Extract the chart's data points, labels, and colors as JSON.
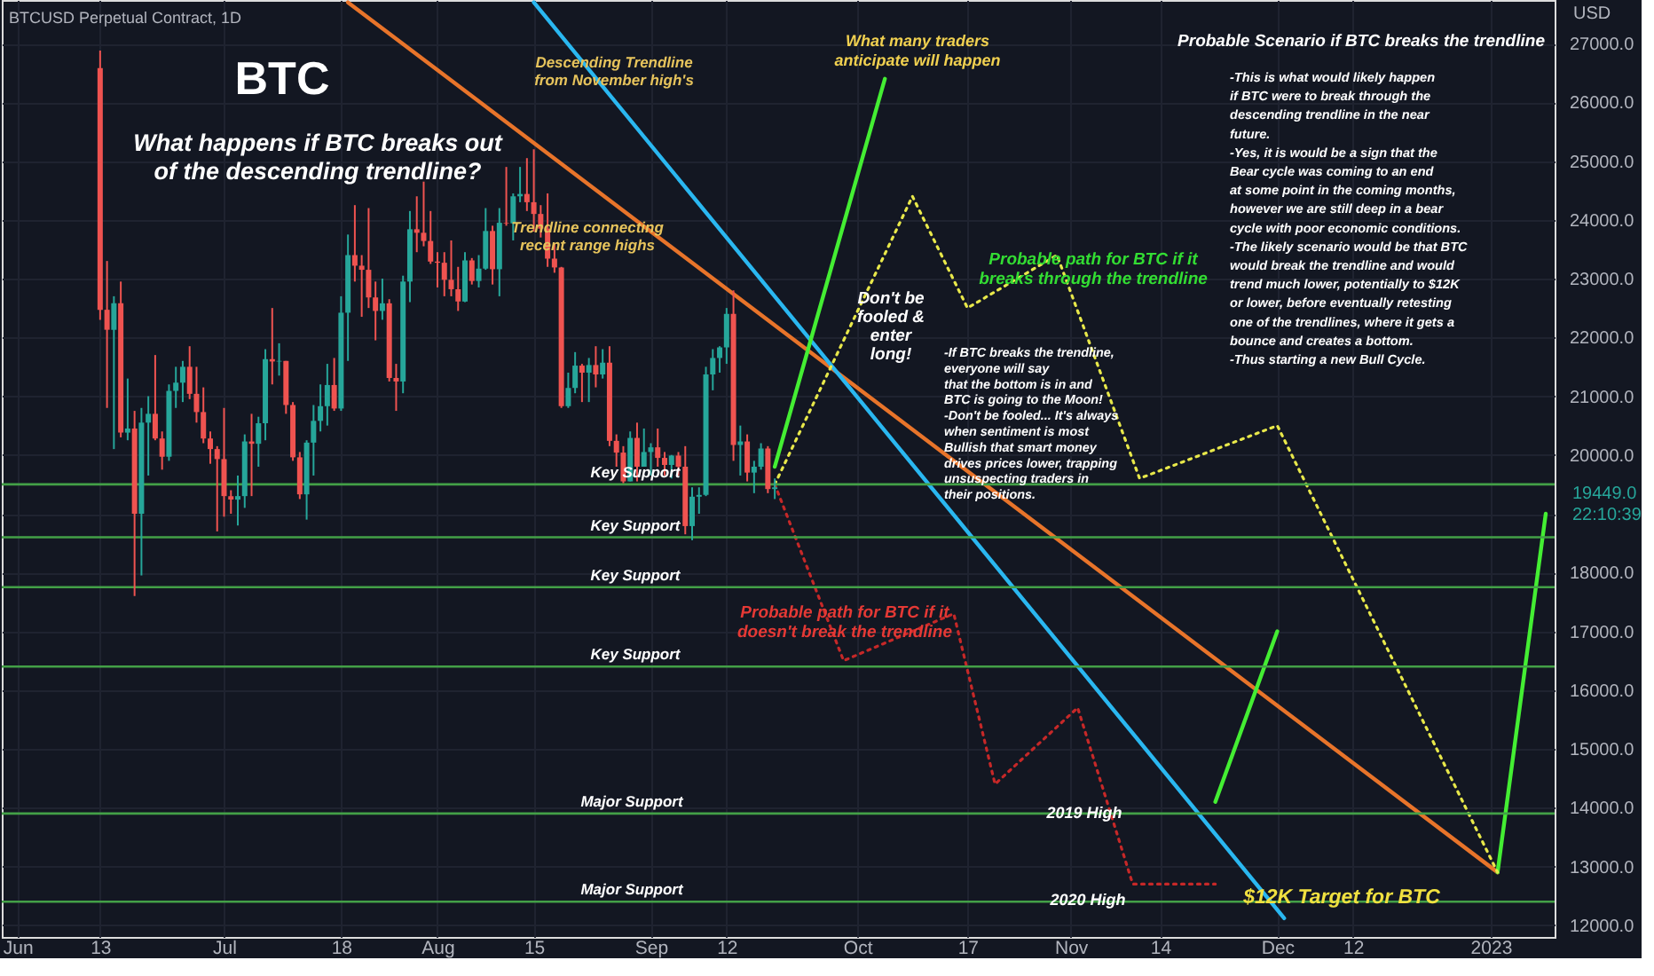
{
  "chart_data": {
    "type": "candlestick",
    "title": "BTCUSD Perpetual Contract, 1D",
    "ylabel": "USD",
    "x": [
      "2022-06-13",
      "2022-06-14",
      "2022-06-15",
      "2022-06-16",
      "2022-06-17",
      "2022-06-18",
      "2022-06-19",
      "2022-06-20",
      "2022-06-21",
      "2022-06-22",
      "2022-06-23",
      "2022-06-24",
      "2022-06-25",
      "2022-06-26",
      "2022-06-27",
      "2022-06-28",
      "2022-06-29",
      "2022-06-30",
      "2022-07-01",
      "2022-07-02",
      "2022-07-03",
      "2022-07-04",
      "2022-07-05",
      "2022-07-06",
      "2022-07-07",
      "2022-07-08",
      "2022-07-09",
      "2022-07-10",
      "2022-07-11",
      "2022-07-12",
      "2022-07-13",
      "2022-07-14",
      "2022-07-15",
      "2022-07-16",
      "2022-07-17",
      "2022-07-18",
      "2022-07-19",
      "2022-07-20",
      "2022-07-21",
      "2022-07-22",
      "2022-07-23",
      "2022-07-24",
      "2022-07-25",
      "2022-07-26",
      "2022-07-27",
      "2022-07-28",
      "2022-07-29",
      "2022-07-30",
      "2022-07-31",
      "2022-08-01",
      "2022-08-02",
      "2022-08-03",
      "2022-08-04",
      "2022-08-05",
      "2022-08-06",
      "2022-08-07",
      "2022-08-08",
      "2022-08-09",
      "2022-08-10",
      "2022-08-11",
      "2022-08-12",
      "2022-08-13",
      "2022-08-14",
      "2022-08-15",
      "2022-08-16",
      "2022-08-17",
      "2022-08-18",
      "2022-08-19",
      "2022-08-20",
      "2022-08-21",
      "2022-08-22",
      "2022-08-23",
      "2022-08-24",
      "2022-08-25",
      "2022-08-26",
      "2022-08-27",
      "2022-08-28",
      "2022-08-29",
      "2022-08-30",
      "2022-08-31",
      "2022-09-01",
      "2022-09-02",
      "2022-09-03",
      "2022-09-04",
      "2022-09-05",
      "2022-09-06",
      "2022-09-07",
      "2022-09-08",
      "2022-09-09",
      "2022-09-10",
      "2022-09-11",
      "2022-09-12",
      "2022-09-13",
      "2022-09-14",
      "2022-09-15",
      "2022-09-16",
      "2022-09-17",
      "2022-09-18",
      "2022-09-19"
    ],
    "ohlc": [
      [
        26580,
        26880,
        22300,
        22470
      ],
      [
        22470,
        23300,
        20800,
        22130
      ],
      [
        22130,
        22700,
        20100,
        22580
      ],
      [
        22580,
        22950,
        20300,
        20380
      ],
      [
        20380,
        21300,
        20250,
        20450
      ],
      [
        20450,
        20750,
        17600,
        19000
      ],
      [
        19000,
        20800,
        17950,
        20550
      ],
      [
        20550,
        21000,
        19650,
        20700
      ],
      [
        20700,
        21700,
        20250,
        20280
      ],
      [
        20280,
        20400,
        19750,
        19970
      ],
      [
        19970,
        21200,
        19900,
        21090
      ],
      [
        21090,
        21500,
        20800,
        21230
      ],
      [
        21230,
        21600,
        20900,
        21500
      ],
      [
        21500,
        21850,
        20950,
        21040
      ],
      [
        21040,
        21500,
        20550,
        20730
      ],
      [
        20730,
        21150,
        20200,
        20280
      ],
      [
        20280,
        20400,
        19850,
        20100
      ],
      [
        20100,
        20150,
        18700,
        19930
      ],
      [
        19930,
        20800,
        18950,
        19300
      ],
      [
        19300,
        19400,
        19000,
        19240
      ],
      [
        19240,
        19650,
        18800,
        19300
      ],
      [
        19300,
        20350,
        19100,
        20230
      ],
      [
        20230,
        20700,
        19300,
        20190
      ],
      [
        20190,
        20650,
        19800,
        20540
      ],
      [
        20540,
        21800,
        20250,
        21630
      ],
      [
        21630,
        22500,
        21200,
        21590
      ],
      [
        21590,
        21900,
        21350,
        21600
      ],
      [
        21600,
        21600,
        20700,
        20850
      ],
      [
        20850,
        20900,
        19900,
        19960
      ],
      [
        19960,
        20050,
        19250,
        19330
      ],
      [
        19330,
        20250,
        18900,
        20210
      ],
      [
        20210,
        20850,
        19650,
        20580
      ],
      [
        20580,
        21200,
        20400,
        20830
      ],
      [
        20830,
        21550,
        20500,
        21190
      ],
      [
        21190,
        21650,
        20750,
        20790
      ],
      [
        20790,
        22700,
        20750,
        22420
      ],
      [
        22420,
        23750,
        21600,
        23400
      ],
      [
        23400,
        24250,
        22950,
        23220
      ],
      [
        23220,
        23400,
        22350,
        23150
      ],
      [
        23150,
        24200,
        22500,
        22680
      ],
      [
        22680,
        22950,
        21950,
        22450
      ],
      [
        22450,
        23000,
        22300,
        22580
      ],
      [
        22580,
        22650,
        21250,
        21310
      ],
      [
        21310,
        21550,
        20750,
        21250
      ],
      [
        21250,
        23050,
        21050,
        22950
      ],
      [
        22950,
        24150,
        22600,
        23840
      ],
      [
        23840,
        24400,
        23450,
        23780
      ],
      [
        23780,
        24650,
        23550,
        23640
      ],
      [
        23640,
        24150,
        23250,
        23290
      ],
      [
        23290,
        23450,
        22850,
        23270
      ],
      [
        23270,
        23450,
        22700,
        22980
      ],
      [
        22980,
        23650,
        22700,
        22820
      ],
      [
        22820,
        23200,
        22450,
        22610
      ],
      [
        22610,
        23450,
        22600,
        23310
      ],
      [
        23310,
        23350,
        22900,
        22960
      ],
      [
        22960,
        23400,
        22850,
        23170
      ],
      [
        23170,
        24200,
        23150,
        23810
      ],
      [
        23810,
        23900,
        22900,
        23160
      ],
      [
        23160,
        24200,
        22700,
        23950
      ],
      [
        23950,
        24900,
        23900,
        23940
      ],
      [
        23940,
        24450,
        23650,
        24400
      ],
      [
        24400,
        24900,
        24300,
        24440
      ],
      [
        24440,
        25050,
        24150,
        24300
      ],
      [
        24300,
        25200,
        23800,
        24100
      ],
      [
        24100,
        24250,
        23700,
        23850
      ],
      [
        23850,
        24450,
        23200,
        23340
      ],
      [
        23340,
        23600,
        23100,
        23190
      ],
      [
        23190,
        23200,
        20800,
        20830
      ],
      [
        20830,
        21400,
        20800,
        21140
      ],
      [
        21140,
        21750,
        21050,
        21520
      ],
      [
        21520,
        21550,
        20900,
        21400
      ],
      [
        21400,
        21650,
        20900,
        21530
      ],
      [
        21530,
        21850,
        21150,
        21370
      ],
      [
        21370,
        21800,
        21300,
        21570
      ],
      [
        21570,
        21850,
        20150,
        20240
      ],
      [
        20240,
        20350,
        19800,
        20040
      ],
      [
        20040,
        20150,
        19520,
        19550
      ],
      [
        19550,
        20400,
        19550,
        20290
      ],
      [
        20290,
        20550,
        19550,
        19800
      ],
      [
        19800,
        20450,
        19800,
        20050
      ],
      [
        20050,
        20200,
        19650,
        20130
      ],
      [
        20130,
        20450,
        19800,
        19950
      ],
      [
        19950,
        20050,
        19650,
        19830
      ],
      [
        19830,
        20000,
        19600,
        19990
      ],
      [
        19990,
        20050,
        19650,
        19800
      ],
      [
        19800,
        20150,
        18650,
        18790
      ],
      [
        18790,
        19450,
        18550,
        19290
      ],
      [
        19290,
        19450,
        19000,
        19320
      ],
      [
        19320,
        21500,
        19300,
        21370
      ],
      [
        21370,
        21800,
        21100,
        21650
      ],
      [
        21650,
        21850,
        21400,
        21830
      ],
      [
        21830,
        22500,
        21550,
        22400
      ],
      [
        22400,
        22800,
        19900,
        20170
      ],
      [
        20170,
        20500,
        19650,
        20230
      ],
      [
        20230,
        20350,
        19550,
        19700
      ],
      [
        19700,
        19900,
        19350,
        19800
      ],
      [
        19800,
        20200,
        19750,
        20110
      ],
      [
        20110,
        20150,
        19350,
        19420
      ],
      [
        19420,
        19600,
        19250,
        19449
      ]
    ],
    "colors": [
      "#ef5350",
      "#ef5350",
      "#26a69a",
      "#ef5350",
      "#26a69a",
      "#ef5350",
      "#26a69a",
      "#26a69a",
      "#ef5350",
      "#ef5350",
      "#26a69a",
      "#26a69a",
      "#26a69a",
      "#ef5350",
      "#ef5350",
      "#ef5350",
      "#ef5350",
      "#ef5350",
      "#ef5350",
      "#ef5350",
      "#26a69a",
      "#26a69a",
      "#ef5350",
      "#26a69a",
      "#26a69a",
      "#ef5350",
      "#26a69a",
      "#ef5350",
      "#ef5350",
      "#ef5350",
      "#26a69a",
      "#26a69a",
      "#26a69a",
      "#26a69a",
      "#ef5350",
      "#26a69a",
      "#26a69a",
      "#ef5350",
      "#ef5350",
      "#ef5350",
      "#ef5350",
      "#26a69a",
      "#ef5350",
      "#ef5350",
      "#26a69a",
      "#26a69a",
      "#ef5350",
      "#ef5350",
      "#ef5350",
      "#ef5350",
      "#ef5350",
      "#ef5350",
      "#ef5350",
      "#26a69a",
      "#ef5350",
      "#26a69a",
      "#26a69a",
      "#ef5350",
      "#26a69a",
      "#ef5350",
      "#26a69a",
      "#26a69a",
      "#ef5350",
      "#ef5350",
      "#ef5350",
      "#ef5350",
      "#ef5350",
      "#ef5350",
      "#26a69a",
      "#26a69a",
      "#ef5350",
      "#26a69a",
      "#ef5350",
      "#26a69a",
      "#ef5350",
      "#ef5350",
      "#ef5350",
      "#26a69a",
      "#ef5350",
      "#26a69a",
      "#26a69a",
      "#ef5350",
      "#ef5350",
      "#26a69a",
      "#ef5350",
      "#ef5350",
      "#26a69a",
      "#26a69a",
      "#26a69a",
      "#26a69a",
      "#26a69a",
      "#26a69a",
      "#ef5350",
      "#26a69a",
      "#ef5350",
      "#26a69a",
      "#26a69a",
      "#ef5350",
      "#26a69a"
    ],
    "series": [
      {
        "type": "line",
        "color": "#e8742a",
        "x": [
          "2022-07-19",
          "2023-01-02"
        ],
        "values": [
          27700,
          12900
        ]
      },
      {
        "type": "line",
        "color": "#2ab7f0",
        "x": [
          "2022-08-15",
          "2022-12-02"
        ],
        "values": [
          27700,
          12120
        ]
      },
      {
        "type": "line",
        "color": "#44ee33",
        "x": [
          "2022-09-19",
          "2022-10-05"
        ],
        "values": [
          19800,
          26400
        ]
      },
      {
        "type": "line",
        "color": "#44ee33",
        "x": [
          "2022-11-22",
          "2022-12-01"
        ],
        "values": [
          14100,
          17000
        ]
      },
      {
        "type": "line",
        "color": "#44ee33",
        "x": [
          "2023-01-02",
          "2023-01-09"
        ],
        "values": [
          12900,
          19000
        ]
      },
      {
        "type": "line",
        "color": "#e8e84a",
        "line_style": "dotted",
        "x": [
          "2022-09-19",
          "2022-10-09",
          "2022-10-17",
          "2022-10-30",
          "2022-11-11",
          "2022-12-01",
          "2023-01-02"
        ],
        "values": [
          19500,
          24400,
          22500,
          23400,
          19600,
          20500,
          12900
        ]
      },
      {
        "type": "line",
        "color": "#c62828",
        "line_style": "dotted",
        "x": [
          "2022-09-19",
          "2022-09-29",
          "2022-10-15",
          "2022-10-21",
          "2022-11-02",
          "2022-11-10",
          "2022-11-22"
        ],
        "values": [
          19500,
          16500,
          17300,
          14400,
          15700,
          12700,
          12700
        ]
      }
    ],
    "ref_lines": [
      {
        "axis": "y",
        "value": 19500,
        "label": "Key Support",
        "color": "#43a047"
      },
      {
        "axis": "y",
        "value": 18600,
        "label": "Key Support",
        "color": "#43a047"
      },
      {
        "axis": "y",
        "value": 17750,
        "label": "Key Support",
        "color": "#43a047"
      },
      {
        "axis": "y",
        "value": 16400,
        "label": "Key Support",
        "color": "#43a047"
      },
      {
        "axis": "y",
        "value": 13900,
        "label": "Major Support",
        "color": "#43a047"
      },
      {
        "axis": "y",
        "value": 12400,
        "label": "Major Support",
        "color": "#43a047"
      }
    ],
    "annotations": [
      "BTC",
      "What happens if BTC breaks out\nof the descending trendline?",
      "Probable Scenario if BTC breaks the trendline",
      "-This is what would likely happen\nif BTC were to break through the\ndescending trendline in the near\nfuture.\n \n-Yes, it is would be a sign that the\nBear cycle was coming to an end\nat some point in the coming months,\nhowever we are still deep in a bear\ncycle with poor economic conditions.\n \n-The likely scenario would be that BTC\nwould break the trendline and would\ntrend much lower, potentially to $12K\nor lower, before eventually retesting\none of the trendlines, where it gets a\nbounce and creates a bottom.\n \n-Thus starting a new Bull Cycle.",
      "-If BTC breaks the trendline,\neveryone will say\nthat the bottom is in and\nBTC is going to the Moon!\n-Don't be fooled... It's always\nwhen sentiment is most\nBullish that smart money\ndrives prices lower, trapping\nunsuspecting traders in\ntheir positions.",
      "Don't be\nfooled &\nenter\nlong!",
      "19449.0\n22:10:39",
      "Descending Trendline\nfrom November high's",
      "Trendline connecting\nrecent range highs",
      "What many traders\nanticipate will happen",
      "Probable path for BTC if it\nbreaks through the trendline",
      "Probable path for BTC if it\ndoesn't break the trendline",
      "2019 High",
      "2020 High",
      "$12K Target for BTC"
    ],
    "xlim": [
      "2022-05-31",
      "2023-01-09"
    ],
    "xticks": [
      {
        "value": "2022-06-01",
        "label": "Jun"
      },
      {
        "value": "2022-06-13",
        "label": "13"
      },
      {
        "value": "2022-07-01",
        "label": "Jul"
      },
      {
        "value": "2022-07-18",
        "label": "18"
      },
      {
        "value": "2022-08-01",
        "label": "Aug"
      },
      {
        "value": "2022-08-15",
        "label": "15"
      },
      {
        "value": "2022-09-01",
        "label": "Sep"
      },
      {
        "value": "2022-09-12",
        "label": "12"
      },
      {
        "value": "2022-10-01",
        "label": "Oct"
      },
      {
        "value": "2022-10-17",
        "label": "17"
      },
      {
        "value": "2022-11-01",
        "label": "Nov"
      },
      {
        "value": "2022-11-14",
        "label": "14"
      },
      {
        "value": "2022-12-01",
        "label": "Dec"
      },
      {
        "value": "2022-12-12",
        "label": "12"
      },
      {
        "value": "2023-01-01",
        "label": "2023"
      }
    ],
    "ylim": [
      11800,
      27740
    ],
    "yticks": [
      {
        "value": 12000,
        "label": "12000.0"
      },
      {
        "value": 13000,
        "label": "13000.0"
      },
      {
        "value": 14000,
        "label": "14000.0"
      },
      {
        "value": 15000,
        "label": "15000.0"
      },
      {
        "value": 16000,
        "label": "16000.0"
      },
      {
        "value": 17000,
        "label": "17000.0"
      },
      {
        "value": 18000,
        "label": "18000.0"
      },
      {
        "value": 19000,
        "label": null
      },
      {
        "value": 20000,
        "label": "20000.0"
      },
      {
        "value": 21000,
        "label": "21000.0"
      },
      {
        "value": 22000,
        "label": "22000.0"
      },
      {
        "value": 23000,
        "label": "23000.0"
      },
      {
        "value": 24000,
        "label": "24000.0"
      },
      {
        "value": 25000,
        "label": "25000.0"
      },
      {
        "value": 26000,
        "label": "26000.0"
      },
      {
        "value": 27000,
        "label": "27000.0"
      }
    ],
    "grid": true
  }
}
